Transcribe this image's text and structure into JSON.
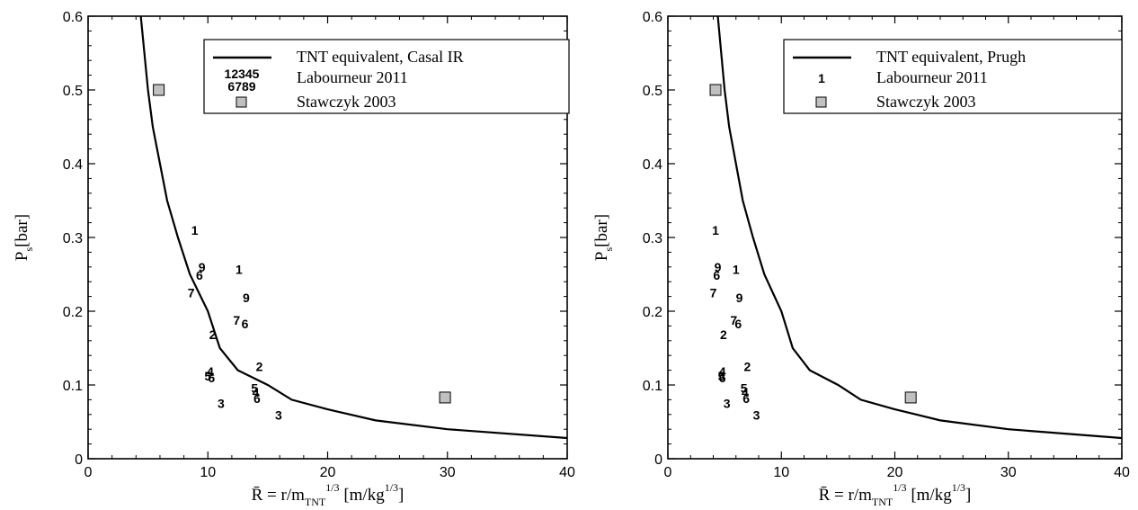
{
  "chart_data": [
    {
      "type": "line",
      "xlabel": "R̄ = r/m_TNT^1/3 [m/kg^1/3]",
      "ylabel": "Ps [bar]",
      "xlim": [
        0,
        40
      ],
      "ylim": [
        0,
        0.6
      ],
      "x_ticks": [
        "0",
        "10",
        "20",
        "30",
        "40"
      ],
      "y_ticks": [
        "0",
        "0.1",
        "0.2",
        "0.3",
        "0.4",
        "0.5",
        "0.6"
      ],
      "grid": false,
      "legend_position": "top-right",
      "curve": {
        "name": "TNT equivalent, Casal IR",
        "color": "#000000",
        "points": [
          [
            4.4,
            0.6
          ],
          [
            4.7,
            0.55
          ],
          [
            5.0,
            0.5
          ],
          [
            5.4,
            0.45
          ],
          [
            6.0,
            0.4
          ],
          [
            6.6,
            0.35
          ],
          [
            7.5,
            0.3
          ],
          [
            8.5,
            0.25
          ],
          [
            10.0,
            0.2
          ],
          [
            11.0,
            0.15
          ],
          [
            12.5,
            0.12
          ],
          [
            15.0,
            0.1
          ],
          [
            17.0,
            0.08
          ],
          [
            20.0,
            0.067
          ],
          [
            24.0,
            0.052
          ],
          [
            30.0,
            0.04
          ],
          [
            40.0,
            0.028
          ]
        ]
      },
      "laboureur": {
        "name": "Labourneur 2011",
        "legend_rows": [
          "12345",
          "6789"
        ],
        "points": [
          {
            "x": 8.9,
            "y": 0.31,
            "label": "1"
          },
          {
            "x": 12.6,
            "y": 0.257,
            "label": "1"
          },
          {
            "x": 10.4,
            "y": 0.168,
            "label": "2"
          },
          {
            "x": 14.3,
            "y": 0.125,
            "label": "2"
          },
          {
            "x": 11.1,
            "y": 0.075,
            "label": "3"
          },
          {
            "x": 15.9,
            "y": 0.059,
            "label": "3"
          },
          {
            "x": 10.2,
            "y": 0.118,
            "label": "4"
          },
          {
            "x": 14.0,
            "y": 0.09,
            "label": "4"
          },
          {
            "x": 10.0,
            "y": 0.112,
            "label": "5"
          },
          {
            "x": 13.9,
            "y": 0.096,
            "label": "5"
          },
          {
            "x": 9.3,
            "y": 0.249,
            "label": "6"
          },
          {
            "x": 13.1,
            "y": 0.183,
            "label": "6"
          },
          {
            "x": 10.3,
            "y": 0.11,
            "label": "6"
          },
          {
            "x": 14.1,
            "y": 0.082,
            "label": "6"
          },
          {
            "x": 8.6,
            "y": 0.225,
            "label": "7"
          },
          {
            "x": 12.4,
            "y": 0.188,
            "label": "7"
          },
          {
            "x": 9.5,
            "y": 0.26,
            "label": "9"
          },
          {
            "x": 13.2,
            "y": 0.218,
            "label": "9"
          }
        ]
      },
      "stawczyk": {
        "name": "Stawczyk 2003",
        "color": "#c0c0c0",
        "points": [
          {
            "x": 5.9,
            "y": 0.5
          },
          {
            "x": 29.8,
            "y": 0.083
          }
        ]
      }
    },
    {
      "type": "line",
      "xlabel": "R̄ = r/m_TNT^1/3 [m/kg^1/3]",
      "ylabel": "Ps [bar]",
      "xlim": [
        0,
        40
      ],
      "ylim": [
        0,
        0.6
      ],
      "x_ticks": [
        "0",
        "10",
        "20",
        "30",
        "40"
      ],
      "y_ticks": [
        "0",
        "0.1",
        "0.2",
        "0.3",
        "0.4",
        "0.5",
        "0.6"
      ],
      "grid": false,
      "legend_position": "top-right",
      "curve": {
        "name": "TNT equivalent, Prugh",
        "color": "#000000",
        "points": [
          [
            4.4,
            0.6
          ],
          [
            4.7,
            0.55
          ],
          [
            5.0,
            0.5
          ],
          [
            5.4,
            0.45
          ],
          [
            6.0,
            0.4
          ],
          [
            6.6,
            0.35
          ],
          [
            7.5,
            0.3
          ],
          [
            8.5,
            0.25
          ],
          [
            10.0,
            0.2
          ],
          [
            11.0,
            0.15
          ],
          [
            12.5,
            0.12
          ],
          [
            15.0,
            0.1
          ],
          [
            17.0,
            0.08
          ],
          [
            20.0,
            0.067
          ],
          [
            24.0,
            0.052
          ],
          [
            30.0,
            0.04
          ],
          [
            40.0,
            0.028
          ]
        ]
      },
      "laboureur": {
        "name": "Labourneur 2011",
        "legend_rows": [
          "1"
        ],
        "points": [
          {
            "x": 4.2,
            "y": 0.31,
            "label": "1"
          },
          {
            "x": 6.0,
            "y": 0.257,
            "label": "1"
          },
          {
            "x": 4.9,
            "y": 0.168,
            "label": "2"
          },
          {
            "x": 7.0,
            "y": 0.125,
            "label": "2"
          },
          {
            "x": 5.2,
            "y": 0.075,
            "label": "3"
          },
          {
            "x": 7.8,
            "y": 0.059,
            "label": "3"
          },
          {
            "x": 4.8,
            "y": 0.118,
            "label": "4"
          },
          {
            "x": 6.8,
            "y": 0.09,
            "label": "4"
          },
          {
            "x": 4.7,
            "y": 0.112,
            "label": "5"
          },
          {
            "x": 6.7,
            "y": 0.096,
            "label": "5"
          },
          {
            "x": 4.3,
            "y": 0.249,
            "label": "6"
          },
          {
            "x": 6.2,
            "y": 0.183,
            "label": "6"
          },
          {
            "x": 4.8,
            "y": 0.11,
            "label": "6"
          },
          {
            "x": 6.9,
            "y": 0.082,
            "label": "6"
          },
          {
            "x": 4.0,
            "y": 0.225,
            "label": "7"
          },
          {
            "x": 5.8,
            "y": 0.188,
            "label": "7"
          },
          {
            "x": 4.4,
            "y": 0.26,
            "label": "9"
          },
          {
            "x": 6.3,
            "y": 0.218,
            "label": "9"
          }
        ]
      },
      "stawczyk": {
        "name": "Stawczyk 2003",
        "color": "#c0c0c0",
        "points": [
          {
            "x": 4.2,
            "y": 0.5
          },
          {
            "x": 21.4,
            "y": 0.083
          }
        ]
      }
    }
  ]
}
